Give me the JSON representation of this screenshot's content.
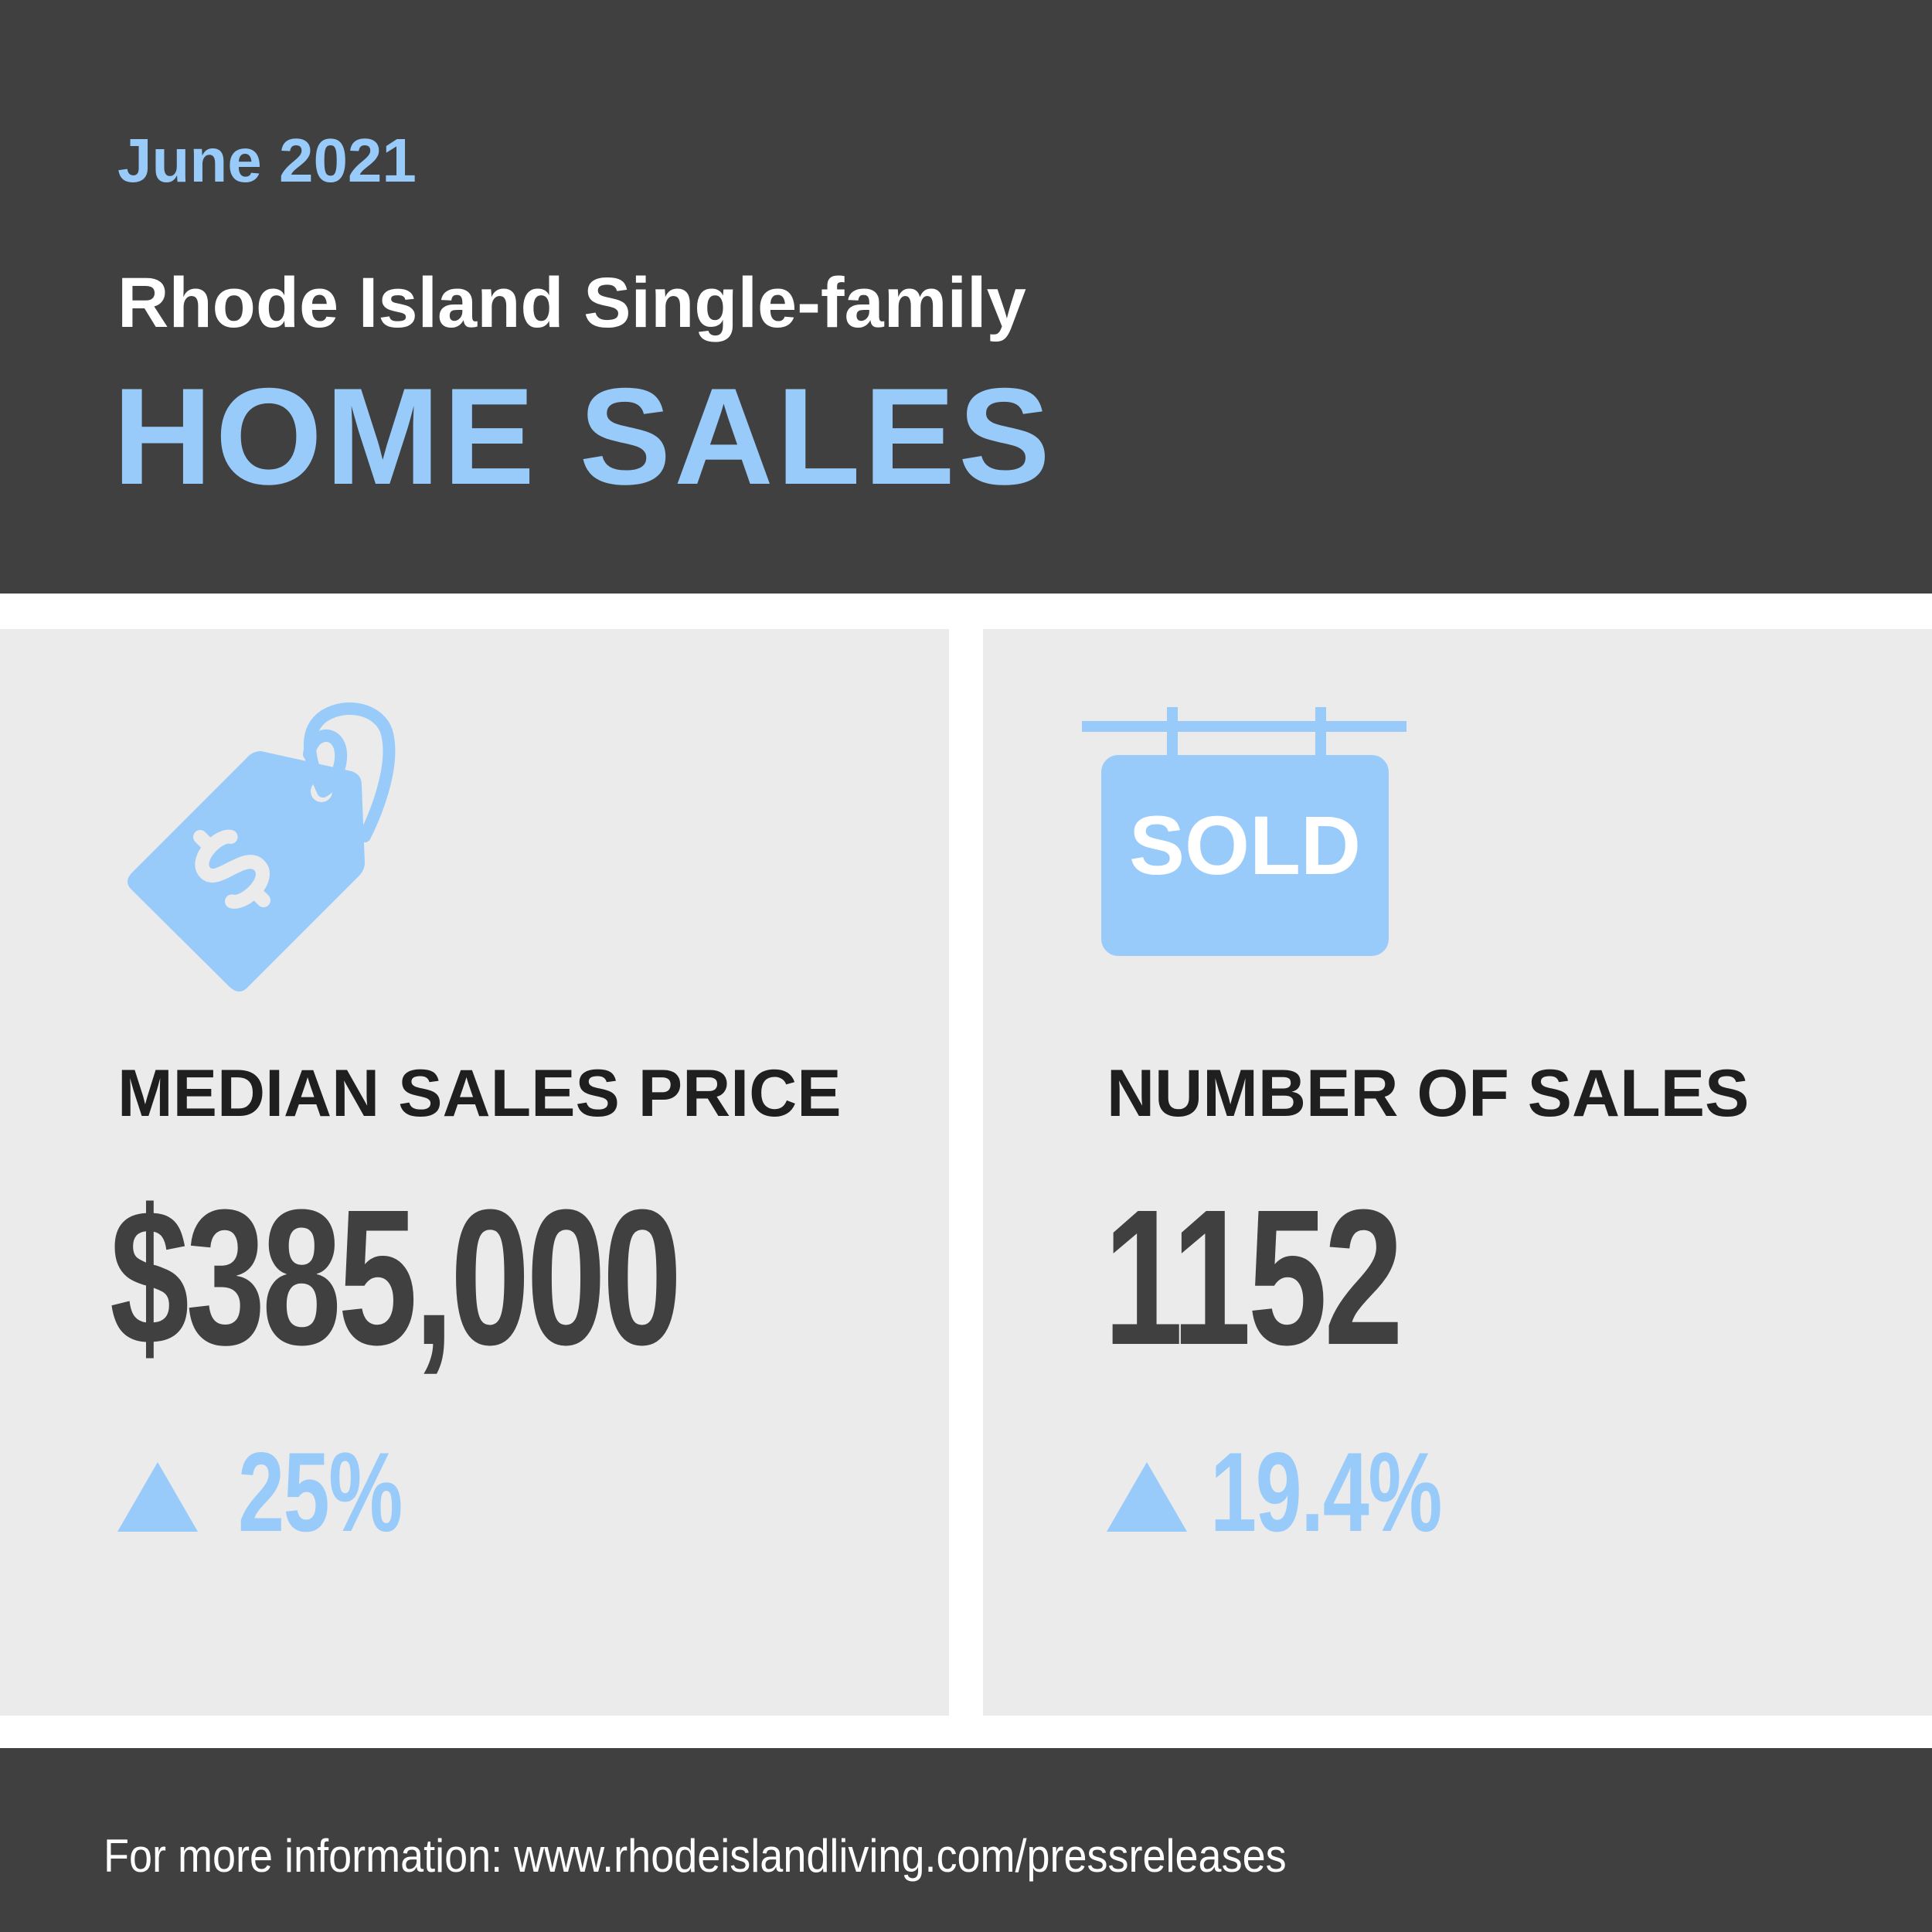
{
  "header": {
    "date": "June 2021",
    "subtitle": "Rhode Island Single-family",
    "title": "HOME SALES"
  },
  "metrics": [
    {
      "icon": "price-tag-icon",
      "label": "MEDIAN SALES PRICE",
      "value": "$385,000",
      "change": "25%",
      "change_direction": "up"
    },
    {
      "icon": "sold-sign-icon",
      "icon_text": "SOLD",
      "label": "NUMBER OF SALES",
      "value": "1152",
      "change": "19.4%",
      "change_direction": "up"
    }
  ],
  "footer": {
    "text": "For more information: www.rhodeislandliving.com/pressreleases"
  },
  "colors": {
    "dark": "#404041",
    "accent": "#99cbfa",
    "panel": "#ebebeb",
    "text": "#1f1f1f"
  }
}
